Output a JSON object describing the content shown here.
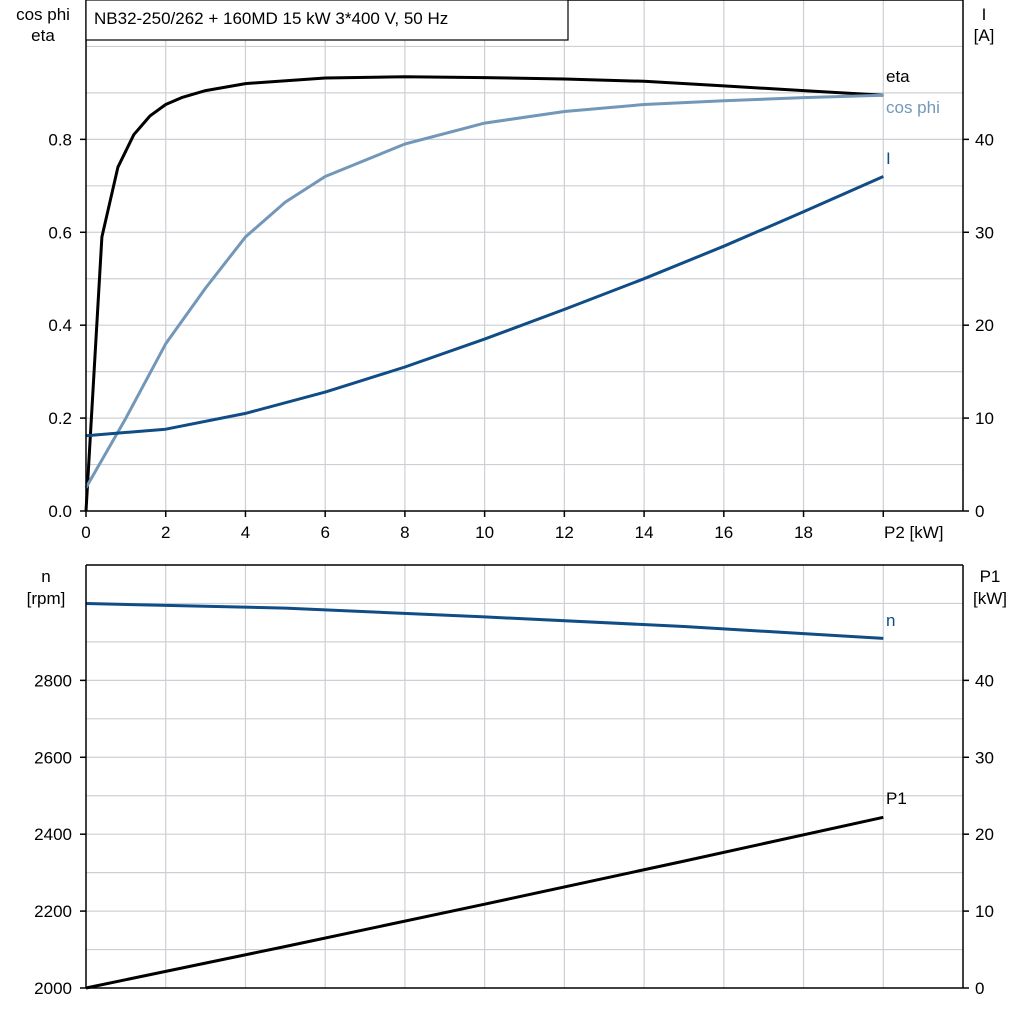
{
  "title": "NB32-250/262 + 160MD   15 kW   3*400 V, 50 Hz",
  "chart_data": [
    {
      "type": "line",
      "xlabel": "P2 [kW]",
      "ylabel_left": [
        "cos phi",
        "eta"
      ],
      "ylabel_right": [
        "I",
        "[A]"
      ],
      "xlim": [
        0,
        22
      ],
      "ylim_left": [
        0,
        1.1
      ],
      "ylim_right": [
        0,
        55
      ],
      "x_ticks": [
        "0",
        "2",
        "4",
        "6",
        "8",
        "10",
        "12",
        "14",
        "16",
        "18"
      ],
      "y_ticks_left": [
        "0.0",
        "0.2",
        "0.4",
        "0.6",
        "0.8"
      ],
      "y_ticks_right": [
        "0",
        "10",
        "20",
        "30",
        "40"
      ],
      "grid": true,
      "series": [
        {
          "name": "eta",
          "axis": "left",
          "color": "#000000",
          "x": [
            0,
            0.4,
            0.8,
            1.2,
            1.6,
            2,
            2.4,
            3,
            4,
            6,
            8,
            10,
            12,
            14,
            16,
            18,
            20
          ],
          "y": [
            0.0,
            0.59,
            0.74,
            0.81,
            0.85,
            0.875,
            0.89,
            0.905,
            0.92,
            0.932,
            0.935,
            0.933,
            0.93,
            0.925,
            0.915,
            0.905,
            0.895
          ]
        },
        {
          "name": "cos phi",
          "axis": "left",
          "color": "#7397b9",
          "x": [
            0,
            1,
            2,
            3,
            4,
            5,
            6,
            8,
            10,
            12,
            14,
            16,
            18,
            20
          ],
          "y": [
            0.05,
            0.2,
            0.36,
            0.48,
            0.59,
            0.665,
            0.72,
            0.79,
            0.835,
            0.86,
            0.875,
            0.883,
            0.89,
            0.895
          ]
        },
        {
          "name": "I",
          "axis": "right",
          "color": "#104c85",
          "x": [
            0,
            2,
            4,
            6,
            8,
            10,
            12,
            14,
            16,
            18,
            20
          ],
          "y": [
            8.1,
            8.8,
            10.5,
            12.8,
            15.5,
            18.5,
            21.7,
            25,
            28.5,
            32.2,
            36
          ]
        }
      ]
    },
    {
      "type": "line",
      "ylabel_left": [
        "n",
        "[rpm]"
      ],
      "ylabel_right": [
        "P1",
        "[kW]"
      ],
      "xlim": [
        0,
        22
      ],
      "ylim_left": [
        2000,
        3100
      ],
      "ylim_right": [
        0,
        55
      ],
      "y_ticks_left": [
        "2000",
        "2200",
        "2400",
        "2600",
        "2800"
      ],
      "y_ticks_right": [
        "0",
        "10",
        "20",
        "30",
        "40"
      ],
      "grid": true,
      "series": [
        {
          "name": "n",
          "axis": "left",
          "color": "#104c85",
          "x": [
            0,
            5,
            10,
            15,
            20
          ],
          "y": [
            3000,
            2988,
            2965,
            2940,
            2909
          ]
        },
        {
          "name": "P1",
          "axis": "right",
          "color": "#000000",
          "x": [
            0,
            5,
            10,
            15,
            20
          ],
          "y": [
            0,
            5.4,
            10.9,
            16.5,
            22.2
          ]
        }
      ]
    }
  ]
}
